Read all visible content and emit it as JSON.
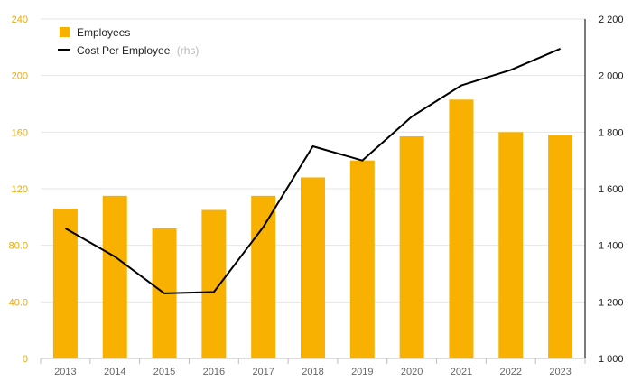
{
  "chart_data": {
    "type": "bar",
    "categories": [
      "2013",
      "2014",
      "2015",
      "2016",
      "2017",
      "2018",
      "2019",
      "2020",
      "2021",
      "2022",
      "2023"
    ],
    "series": [
      {
        "name": "Employees",
        "type": "bar",
        "axis": "left",
        "color": "#f8b100",
        "values": [
          106,
          115,
          92,
          105,
          115,
          128,
          140,
          157,
          183,
          160,
          158
        ]
      },
      {
        "name": "Cost Per Employee",
        "name_suffix": "(rhs)",
        "type": "line",
        "axis": "right",
        "color": "#000000",
        "values": [
          1460,
          1360,
          1230,
          1235,
          1465,
          1750,
          1700,
          1855,
          1965,
          2020,
          2095
        ]
      }
    ],
    "y_left": {
      "range": [
        0,
        240
      ],
      "ticks": [
        0,
        40,
        80,
        120,
        160,
        200,
        240
      ],
      "tick_labels": [
        "0",
        "40.0",
        "80.0",
        "120",
        "160",
        "200",
        "240"
      ],
      "color": "#f0a800"
    },
    "y_right": {
      "range": [
        1000,
        2200
      ],
      "ticks": [
        1000,
        1200,
        1400,
        1600,
        1800,
        2000,
        2200
      ],
      "tick_labels": [
        "1 000",
        "1 200",
        "1 400",
        "1 600",
        "1 800",
        "2 000",
        "2 200"
      ]
    },
    "grid": true,
    "legend_position": "top-left"
  }
}
